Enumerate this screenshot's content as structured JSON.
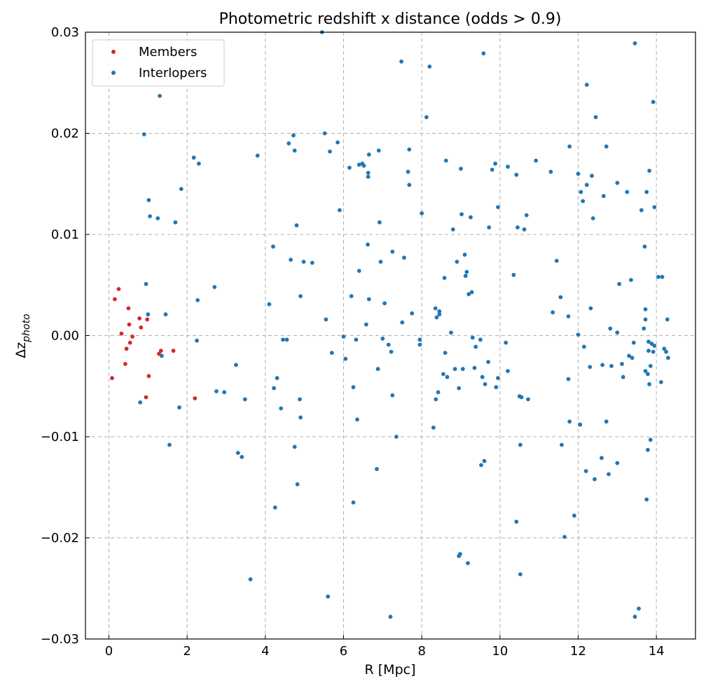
{
  "chart_data": {
    "type": "scatter",
    "title": "Photometric redshift x distance (odds > 0.9)",
    "xlabel": "R [Mpc]",
    "ylabel_main": "Δz",
    "ylabel_sub": "photo",
    "xlim": [
      -0.6,
      15.0
    ],
    "ylim": [
      -0.03,
      0.03
    ],
    "x_ticks": [
      0,
      2,
      4,
      6,
      8,
      10,
      12,
      14
    ],
    "x_tick_labels": [
      "0",
      "2",
      "4",
      "6",
      "8",
      "10",
      "12",
      "14"
    ],
    "y_ticks": [
      -0.03,
      -0.02,
      -0.01,
      0.0,
      0.01,
      0.02,
      0.03
    ],
    "y_tick_labels": [
      "−0.03",
      "−0.02",
      "−0.01",
      "0.00",
      "0.01",
      "0.02",
      "0.03"
    ],
    "grid": true,
    "legend_position": "top-left",
    "series": [
      {
        "name": "Members",
        "color": "#d62728",
        "points": [
          [
            0.08,
            -0.0042
          ],
          [
            0.15,
            0.0036
          ],
          [
            0.25,
            0.0046
          ],
          [
            0.32,
            0.0002
          ],
          [
            0.42,
            -0.0028
          ],
          [
            0.45,
            -0.0013
          ],
          [
            0.5,
            0.0027
          ],
          [
            0.52,
            0.0011
          ],
          [
            0.54,
            -0.0007
          ],
          [
            0.6,
            -0.0001
          ],
          [
            0.78,
            0.0017
          ],
          [
            0.82,
            0.0008
          ],
          [
            0.95,
            -0.0061
          ],
          [
            0.98,
            0.0016
          ],
          [
            1.02,
            -0.004
          ],
          [
            1.28,
            -0.0018
          ],
          [
            1.33,
            -0.0015
          ],
          [
            1.65,
            -0.0015
          ],
          [
            2.2,
            -0.0062
          ]
        ]
      },
      {
        "name": "Interlopers",
        "color": "#1f77b4",
        "points": [
          [
            0.8,
            -0.0066
          ],
          [
            0.9,
            0.0199
          ],
          [
            0.95,
            0.0051
          ],
          [
            1.0,
            0.0021
          ],
          [
            1.02,
            0.0134
          ],
          [
            1.05,
            0.0118
          ],
          [
            1.25,
            0.0116
          ],
          [
            1.3,
            0.0237
          ],
          [
            1.35,
            -0.002
          ],
          [
            1.45,
            0.0021
          ],
          [
            1.55,
            -0.0108
          ],
          [
            1.7,
            0.0112
          ],
          [
            1.8,
            -0.0071
          ],
          [
            1.85,
            0.0145
          ],
          [
            2.17,
            0.0176
          ],
          [
            2.25,
            -0.0005
          ],
          [
            2.27,
            0.0035
          ],
          [
            2.3,
            0.017
          ],
          [
            2.7,
            0.0048
          ],
          [
            2.75,
            -0.0055
          ],
          [
            2.95,
            -0.0056
          ],
          [
            3.25,
            -0.0029
          ],
          [
            3.3,
            -0.0116
          ],
          [
            3.4,
            -0.012
          ],
          [
            3.48,
            -0.0063
          ],
          [
            3.62,
            -0.0241
          ],
          [
            3.8,
            0.0178
          ],
          [
            4.1,
            0.0031
          ],
          [
            4.2,
            0.0088
          ],
          [
            4.22,
            -0.0052
          ],
          [
            4.25,
            -0.017
          ],
          [
            4.3,
            -0.0042
          ],
          [
            4.4,
            -0.0072
          ],
          [
            4.45,
            -0.0004
          ],
          [
            4.55,
            -0.0004
          ],
          [
            4.6,
            0.019
          ],
          [
            4.65,
            0.0075
          ],
          [
            4.72,
            0.0198
          ],
          [
            4.75,
            0.0183
          ],
          [
            4.75,
            -0.011
          ],
          [
            4.8,
            0.0109
          ],
          [
            4.82,
            -0.0147
          ],
          [
            4.88,
            -0.0063
          ],
          [
            4.9,
            -0.0081
          ],
          [
            4.9,
            0.0039
          ],
          [
            4.98,
            0.0073
          ],
          [
            5.2,
            0.0072
          ],
          [
            5.45,
            0.03
          ],
          [
            5.52,
            0.02
          ],
          [
            5.55,
            0.0016
          ],
          [
            5.6,
            -0.0258
          ],
          [
            5.65,
            0.0182
          ],
          [
            5.7,
            -0.0017
          ],
          [
            5.85,
            0.0191
          ],
          [
            5.9,
            0.0124
          ],
          [
            6.0,
            -0.0001
          ],
          [
            6.05,
            -0.0023
          ],
          [
            6.15,
            0.0166
          ],
          [
            6.2,
            0.0039
          ],
          [
            6.25,
            -0.0051
          ],
          [
            6.25,
            -0.0165
          ],
          [
            6.32,
            -0.0004
          ],
          [
            6.35,
            -0.0083
          ],
          [
            6.4,
            0.0169
          ],
          [
            6.4,
            0.0064
          ],
          [
            6.48,
            0.017
          ],
          [
            6.52,
            0.0168
          ],
          [
            6.58,
            0.0011
          ],
          [
            6.62,
            0.009
          ],
          [
            6.63,
            0.0161
          ],
          [
            6.63,
            0.0157
          ],
          [
            6.65,
            0.0179
          ],
          [
            6.65,
            0.0036
          ],
          [
            6.85,
            -0.0132
          ],
          [
            6.88,
            -0.0033
          ],
          [
            6.9,
            0.0183
          ],
          [
            6.92,
            0.0112
          ],
          [
            6.95,
            0.0073
          ],
          [
            7.0,
            -0.0003
          ],
          [
            7.05,
            0.0032
          ],
          [
            7.15,
            -0.0009
          ],
          [
            7.2,
            -0.0278
          ],
          [
            7.22,
            -0.0016
          ],
          [
            7.25,
            0.0083
          ],
          [
            7.25,
            -0.0059
          ],
          [
            7.35,
            -0.01
          ],
          [
            7.48,
            0.0271
          ],
          [
            7.5,
            0.0013
          ],
          [
            7.55,
            0.0077
          ],
          [
            7.65,
            0.0162
          ],
          [
            7.68,
            0.0184
          ],
          [
            7.68,
            0.0149
          ],
          [
            7.75,
            0.0022
          ],
          [
            7.95,
            -0.0004
          ],
          [
            7.95,
            -0.0009
          ],
          [
            8.0,
            0.0121
          ],
          [
            8.12,
            0.0216
          ],
          [
            8.2,
            0.0266
          ],
          [
            8.3,
            -0.0091
          ],
          [
            8.35,
            0.0027
          ],
          [
            8.36,
            -0.0063
          ],
          [
            8.38,
            0.0018
          ],
          [
            8.42,
            -0.0056
          ],
          [
            8.45,
            0.0024
          ],
          [
            8.45,
            0.0021
          ],
          [
            8.55,
            -0.0038
          ],
          [
            8.58,
            0.0057
          ],
          [
            8.6,
            -0.0017
          ],
          [
            8.62,
            0.0173
          ],
          [
            8.65,
            -0.0041
          ],
          [
            8.75,
            0.0003
          ],
          [
            8.8,
            0.0105
          ],
          [
            8.85,
            -0.0033
          ],
          [
            8.9,
            0.0073
          ],
          [
            8.95,
            -0.0052
          ],
          [
            8.95,
            -0.0218
          ],
          [
            8.98,
            -0.0216
          ],
          [
            9.0,
            0.0165
          ],
          [
            9.02,
            0.012
          ],
          [
            9.05,
            -0.0033
          ],
          [
            9.1,
            0.008
          ],
          [
            9.12,
            0.0059
          ],
          [
            9.15,
            0.0063
          ],
          [
            9.18,
            -0.0225
          ],
          [
            9.2,
            0.0041
          ],
          [
            9.25,
            0.0117
          ],
          [
            9.28,
            0.0043
          ],
          [
            9.3,
            -0.0002
          ],
          [
            9.35,
            -0.0032
          ],
          [
            9.38,
            -0.0011
          ],
          [
            9.5,
            -0.0004
          ],
          [
            9.52,
            -0.0128
          ],
          [
            9.55,
            -0.0041
          ],
          [
            9.58,
            0.0279
          ],
          [
            9.6,
            -0.0124
          ],
          [
            9.62,
            -0.0048
          ],
          [
            9.7,
            -0.0026
          ],
          [
            9.72,
            0.0107
          ],
          [
            9.8,
            0.0164
          ],
          [
            9.88,
            0.017
          ],
          [
            9.9,
            -0.0051
          ],
          [
            9.95,
            0.0127
          ],
          [
            9.95,
            -0.0042
          ],
          [
            10.15,
            -0.0007
          ],
          [
            10.2,
            0.0167
          ],
          [
            10.2,
            -0.0035
          ],
          [
            10.35,
            0.006
          ],
          [
            10.42,
            0.0159
          ],
          [
            10.42,
            -0.0184
          ],
          [
            10.45,
            0.0107
          ],
          [
            10.5,
            -0.006
          ],
          [
            10.52,
            -0.0108
          ],
          [
            10.52,
            -0.0236
          ],
          [
            10.55,
            -0.0061
          ],
          [
            10.62,
            0.0105
          ],
          [
            10.68,
            0.0119
          ],
          [
            10.72,
            -0.0063
          ],
          [
            10.92,
            0.0173
          ],
          [
            11.3,
            0.0162
          ],
          [
            11.35,
            0.0023
          ],
          [
            11.45,
            0.0074
          ],
          [
            11.55,
            0.0038
          ],
          [
            11.58,
            -0.0108
          ],
          [
            11.65,
            -0.0199
          ],
          [
            11.75,
            0.0019
          ],
          [
            11.75,
            -0.0043
          ],
          [
            11.78,
            0.0187
          ],
          [
            11.78,
            -0.0085
          ],
          [
            11.9,
            -0.0178
          ],
          [
            12.0,
            0.016
          ],
          [
            12.0,
            0.0001
          ],
          [
            12.05,
            -0.0088
          ],
          [
            12.07,
            0.0142
          ],
          [
            12.12,
            0.0133
          ],
          [
            12.15,
            -0.0011
          ],
          [
            12.2,
            -0.0134
          ],
          [
            12.22,
            0.0248
          ],
          [
            12.22,
            0.0149
          ],
          [
            12.3,
            -0.0031
          ],
          [
            12.32,
            0.0027
          ],
          [
            12.35,
            0.0158
          ],
          [
            12.38,
            0.0116
          ],
          [
            12.42,
            -0.0142
          ],
          [
            12.45,
            0.0216
          ],
          [
            12.6,
            -0.0121
          ],
          [
            12.62,
            -0.0029
          ],
          [
            12.65,
            0.0138
          ],
          [
            12.72,
            0.0187
          ],
          [
            12.72,
            -0.0085
          ],
          [
            12.78,
            -0.0137
          ],
          [
            12.82,
            0.0007
          ],
          [
            12.85,
            -0.003
          ],
          [
            13.0,
            0.0151
          ],
          [
            13.0,
            0.0003
          ],
          [
            13.0,
            -0.0126
          ],
          [
            13.05,
            0.0051
          ],
          [
            13.12,
            -0.0028
          ],
          [
            13.15,
            -0.0041
          ],
          [
            13.25,
            0.0142
          ],
          [
            13.3,
            -0.002
          ],
          [
            13.35,
            0.0055
          ],
          [
            13.38,
            -0.0022
          ],
          [
            13.42,
            -0.0007
          ],
          [
            13.45,
            0.0289
          ],
          [
            13.45,
            -0.0278
          ],
          [
            13.55,
            -0.027
          ],
          [
            13.62,
            0.0124
          ],
          [
            13.68,
            0.0007
          ],
          [
            13.7,
            0.0088
          ],
          [
            13.72,
            -0.0035
          ],
          [
            13.72,
            0.0026
          ],
          [
            13.72,
            0.0016
          ],
          [
            13.75,
            -0.0162
          ],
          [
            13.75,
            0.0142
          ],
          [
            13.78,
            -0.0038
          ],
          [
            13.78,
            -0.0113
          ],
          [
            13.8,
            -0.0015
          ],
          [
            13.8,
            -0.0006
          ],
          [
            13.82,
            -0.0048
          ],
          [
            13.82,
            0.0163
          ],
          [
            13.85,
            -0.003
          ],
          [
            13.85,
            -0.0103
          ],
          [
            13.88,
            -0.0008
          ],
          [
            13.92,
            -0.0016
          ],
          [
            13.92,
            0.0231
          ],
          [
            13.95,
            0.0127
          ],
          [
            13.95,
            -0.001
          ],
          [
            14.05,
            0.0058
          ],
          [
            14.12,
            -0.0046
          ],
          [
            14.15,
            0.0058
          ],
          [
            14.2,
            -0.0013
          ],
          [
            14.25,
            -0.0016
          ],
          [
            14.28,
            0.0016
          ],
          [
            14.3,
            -0.0022
          ]
        ]
      }
    ]
  }
}
